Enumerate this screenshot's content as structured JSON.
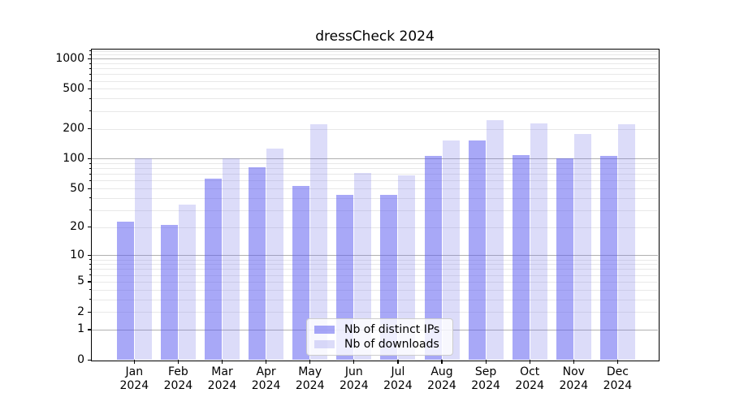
{
  "chart_data": {
    "type": "bar",
    "title": "dressCheck 2024",
    "categories": [
      "Jan",
      "Feb",
      "Mar",
      "Apr",
      "May",
      "Jun",
      "Jul",
      "Aug",
      "Sep",
      "Oct",
      "Nov",
      "Dec"
    ],
    "year_label": "2024",
    "series": [
      {
        "name": "Nb of distinct IPs",
        "color": "rgba(90,90,240,0.53)",
        "values": [
          23,
          21,
          63,
          82,
          53,
          43,
          43,
          107,
          153,
          109,
          101,
          106
        ]
      },
      {
        "name": "Nb of downloads",
        "color": "rgba(120,120,230,0.26)",
        "values": [
          100,
          34,
          100,
          126,
          220,
          72,
          68,
          152,
          243,
          226,
          178,
          223
        ]
      }
    ],
    "yticks": [
      0,
      1,
      2,
      5,
      10,
      20,
      50,
      100,
      200,
      500,
      1000
    ],
    "scale": "log1p",
    "ylim": [
      0,
      1235
    ],
    "grid": {
      "major_values": [
        1,
        10,
        100,
        1000
      ],
      "major_color": "#b0b0b0",
      "minor_color": "#e8e8e8",
      "minor_on": true
    },
    "legend_position": "lower center inside",
    "axis_color": "#000000",
    "xlabel": "",
    "ylabel": ""
  }
}
